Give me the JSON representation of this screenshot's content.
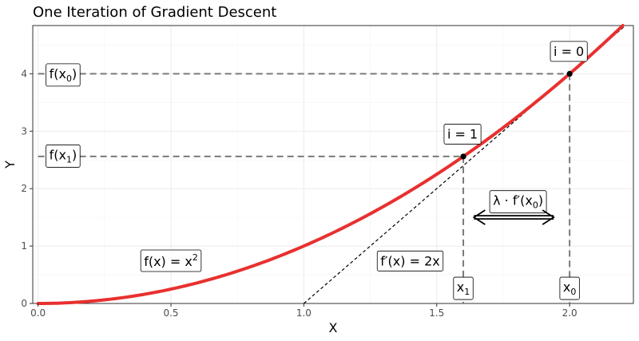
{
  "chart_data": {
    "type": "line",
    "title": "One Iteration of Gradient Descent",
    "xlabel": "X",
    "ylabel": "Y",
    "xlim": [
      -0.02,
      2.24
    ],
    "ylim": [
      0,
      4.84
    ],
    "x_ticks": [
      0.0,
      0.5,
      1.0,
      1.5,
      2.0
    ],
    "x_tick_labels": [
      "0.0",
      "0.5",
      "1.0",
      "1.5",
      "2.0"
    ],
    "y_ticks": [
      0,
      1,
      2,
      3,
      4
    ],
    "y_tick_labels": [
      "0",
      "1",
      "2",
      "3",
      "4"
    ],
    "grid": true,
    "curve": {
      "function": "x^2",
      "x_range": [
        0,
        2.2
      ],
      "color": "#e8302f"
    },
    "tangent": {
      "slope": 4,
      "intercept": -4,
      "x_range": [
        1,
        2.25
      ]
    },
    "points": [
      {
        "x": 2.0,
        "y": 4.0,
        "label": "i = 0"
      },
      {
        "x": 1.6,
        "y": 2.56,
        "label": "i = 1"
      }
    ],
    "annotations": {
      "fx0": {
        "base": "f(x",
        "sub": "0",
        "close": ")",
        "x": 0.1,
        "y": 4.0
      },
      "fx1": {
        "base": "f(x",
        "sub": "1",
        "close": ")",
        "x": 0.1,
        "y": 2.56
      },
      "x0": {
        "base": "x",
        "sub": "0",
        "x": 2.0,
        "y": 0.27
      },
      "x1": {
        "base": "x",
        "sub": "1",
        "x": 1.6,
        "y": 0.27
      },
      "fx": {
        "base": "f(x) = x",
        "sup": "2",
        "x": 0.5,
        "y": 0.73
      },
      "dfx": {
        "text": "f′(x) = 2x",
        "x": 1.4,
        "y": 0.74
      },
      "step": {
        "base": "λ · f′(x",
        "sub": "0",
        "close": ")",
        "x": 1.8,
        "y": 1.75
      }
    },
    "step_arrow": {
      "x_from": 1.64,
      "x_to": 1.94,
      "y": 1.5
    }
  }
}
